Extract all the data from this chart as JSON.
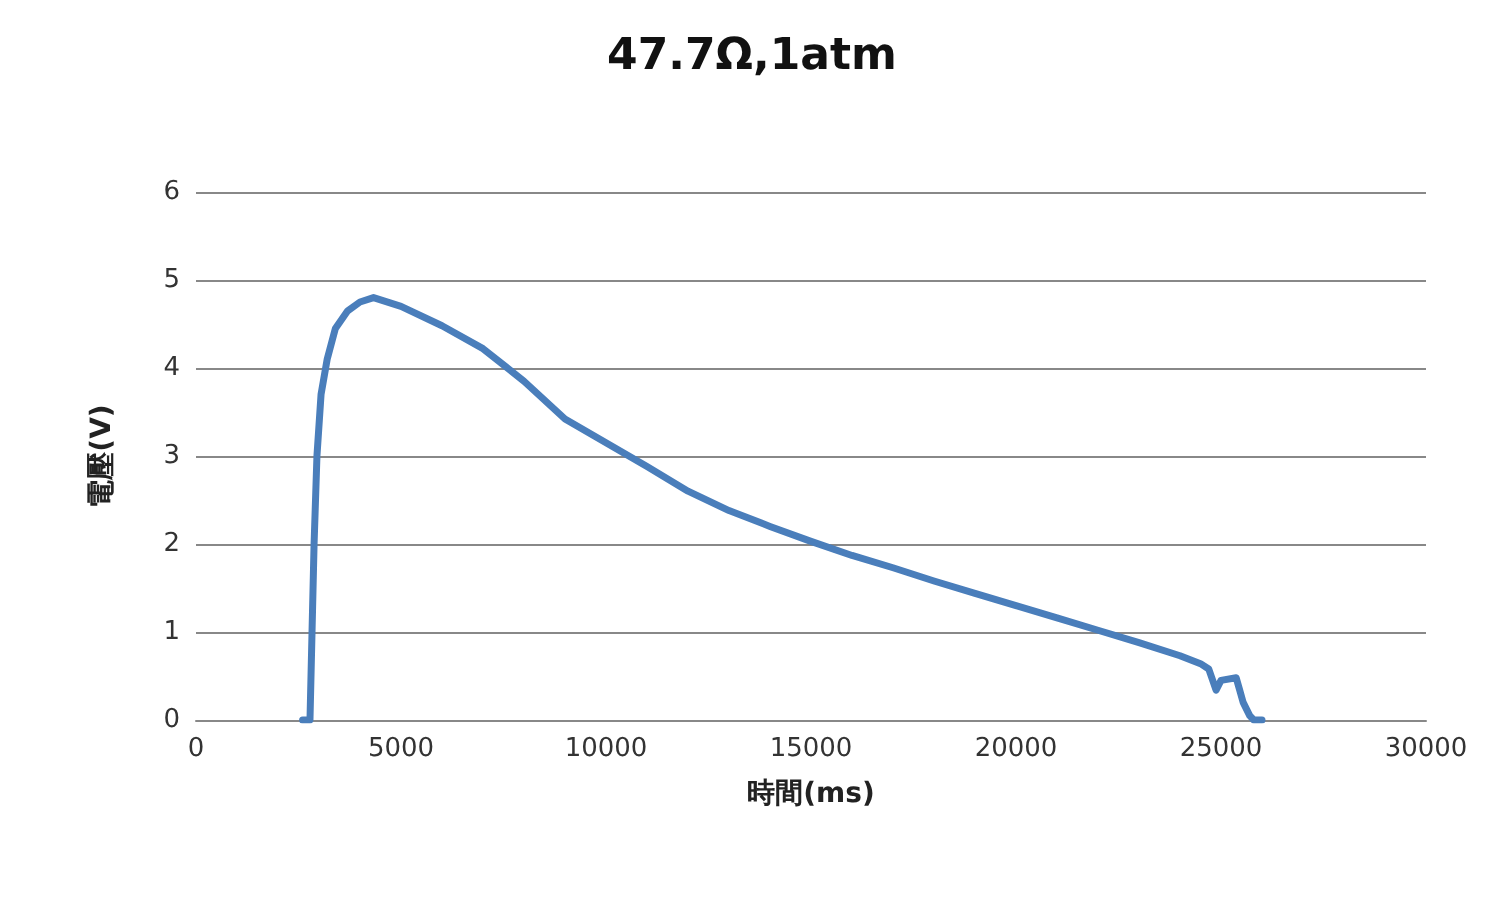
{
  "chart_data": {
    "type": "line",
    "title": "47.7Ω,1atm",
    "xlabel": "時間(ms)",
    "ylabel": "電壓(V)",
    "xlim": [
      0,
      30000
    ],
    "xticks": [
      0,
      5000,
      10000,
      15000,
      20000,
      25000,
      30000
    ],
    "ylim": [
      0,
      6
    ],
    "yticks": [
      0,
      1,
      2,
      3,
      4,
      5,
      6
    ],
    "grid": "y",
    "marker": "none",
    "line_style": "solid",
    "series": [
      {
        "color": "#4a7ebb",
        "x": [
          2600,
          2780,
          2830,
          2880,
          2950,
          3050,
          3200,
          3400,
          3700,
          4000,
          4330,
          5000,
          6000,
          7000,
          8000,
          9000,
          10000,
          11000,
          12000,
          13000,
          14000,
          15000,
          16000,
          17000,
          18000,
          19000,
          20000,
          21000,
          22000,
          23000,
          24000,
          24500,
          24700,
          24880,
          25000,
          25370,
          25450,
          25540,
          25700,
          25800,
          26000
        ],
        "values": [
          0,
          0,
          1,
          2,
          3,
          3.7,
          4.1,
          4.45,
          4.65,
          4.75,
          4.8,
          4.7,
          4.48,
          4.22,
          3.85,
          3.42,
          3.15,
          2.88,
          2.6,
          2.38,
          2.2,
          2.03,
          1.87,
          1.73,
          1.58,
          1.44,
          1.3,
          1.16,
          1.02,
          0.88,
          0.73,
          0.64,
          0.58,
          0.34,
          0.45,
          0.48,
          0.35,
          0.2,
          0.05,
          0,
          0
        ]
      }
    ]
  }
}
